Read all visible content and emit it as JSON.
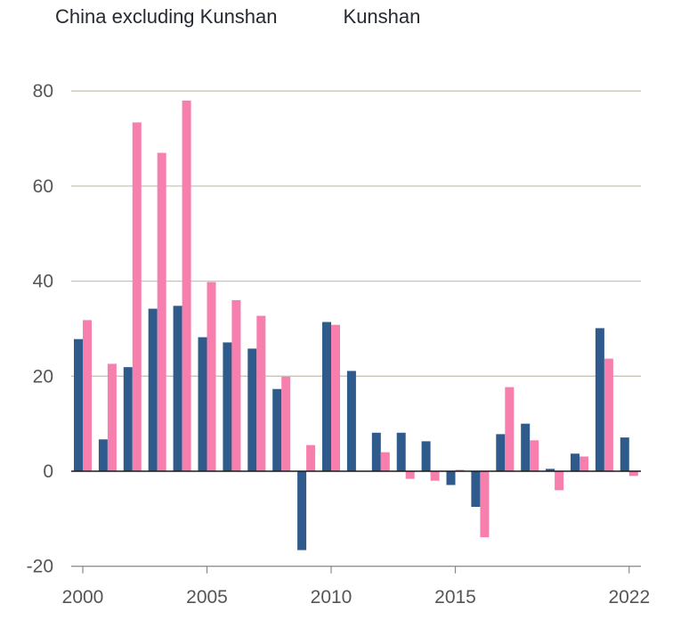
{
  "chart_data": {
    "type": "bar",
    "title": "",
    "xlabel": "",
    "ylabel": "",
    "ylim": [
      -20,
      85
    ],
    "yticks": [
      -20,
      0,
      20,
      40,
      60,
      80
    ],
    "x": [
      2000,
      2001,
      2002,
      2003,
      2004,
      2005,
      2006,
      2007,
      2008,
      2009,
      2010,
      2011,
      2012,
      2013,
      2014,
      2015,
      2016,
      2017,
      2018,
      2019,
      2020,
      2021,
      2022
    ],
    "xtick_labels": [
      "2000",
      "2005",
      "2010",
      "2015",
      "2022"
    ],
    "xtick_values": [
      2000,
      2005,
      2010,
      2015,
      2022
    ],
    "grid": true,
    "legend_position": "top-left",
    "series": [
      {
        "name": "China excluding Kunshan",
        "color": "#2e5b8c",
        "values": [
          27.8,
          6.7,
          21.9,
          34.2,
          34.8,
          28.2,
          27.1,
          25.8,
          17.3,
          -16.6,
          31.4,
          21.1,
          8.1,
          8.1,
          6.3,
          -2.9,
          -7.5,
          7.8,
          10,
          0.5,
          3.7,
          30.1,
          7.1
        ]
      },
      {
        "name": "Kunshan",
        "color": "#f77fae",
        "values": [
          31.8,
          22.6,
          73.4,
          67,
          78,
          39.8,
          36,
          32.7,
          19.9,
          5.5,
          30.8,
          null,
          4,
          -1.6,
          -2,
          0.3,
          -13.9,
          17.7,
          6.5,
          -4,
          3.1,
          23.7,
          -1
        ]
      }
    ]
  }
}
